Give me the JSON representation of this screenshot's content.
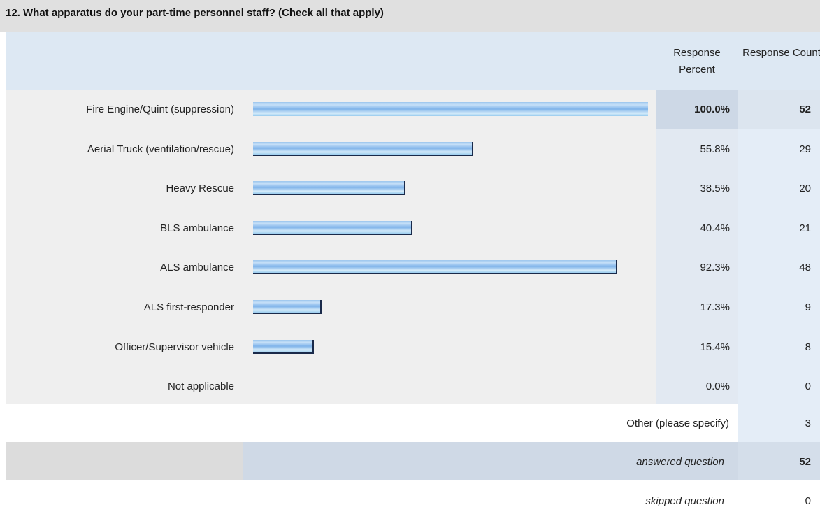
{
  "question": "12. What apparatus do your part-time personnel staff? (Check all that apply)",
  "headers": {
    "percent": "Response Percent",
    "count": "Response Count"
  },
  "chart_data": {
    "type": "bar",
    "categories": [
      "Fire Engine/Quint (suppression)",
      "Aerial Truck (ventilation/rescue)",
      "Heavy Rescue",
      "BLS ambulance",
      "ALS ambulance",
      "ALS first-responder",
      "Officer/Supervisor vehicle",
      "Not applicable"
    ],
    "values": [
      100.0,
      55.8,
      38.5,
      40.4,
      92.3,
      17.3,
      15.4,
      0.0
    ],
    "percent_labels": [
      "100.0%",
      "55.8%",
      "38.5%",
      "40.4%",
      "92.3%",
      "17.3%",
      "15.4%",
      "0.0%"
    ],
    "counts": [
      "52",
      "29",
      "20",
      "21",
      "48",
      "9",
      "8",
      "0"
    ],
    "ylim": [
      0,
      100
    ]
  },
  "other": {
    "label": "Other (please specify)",
    "count": "3"
  },
  "summary": {
    "answered_label": "answered question",
    "answered_count": "52",
    "skipped_label": "skipped question",
    "skipped_count": "0"
  },
  "colors": {
    "bar": "#8fc0ee",
    "bar_edge": "#1a2a4a",
    "header_band": "#dde8f3",
    "title_band": "#e0e0e0"
  }
}
